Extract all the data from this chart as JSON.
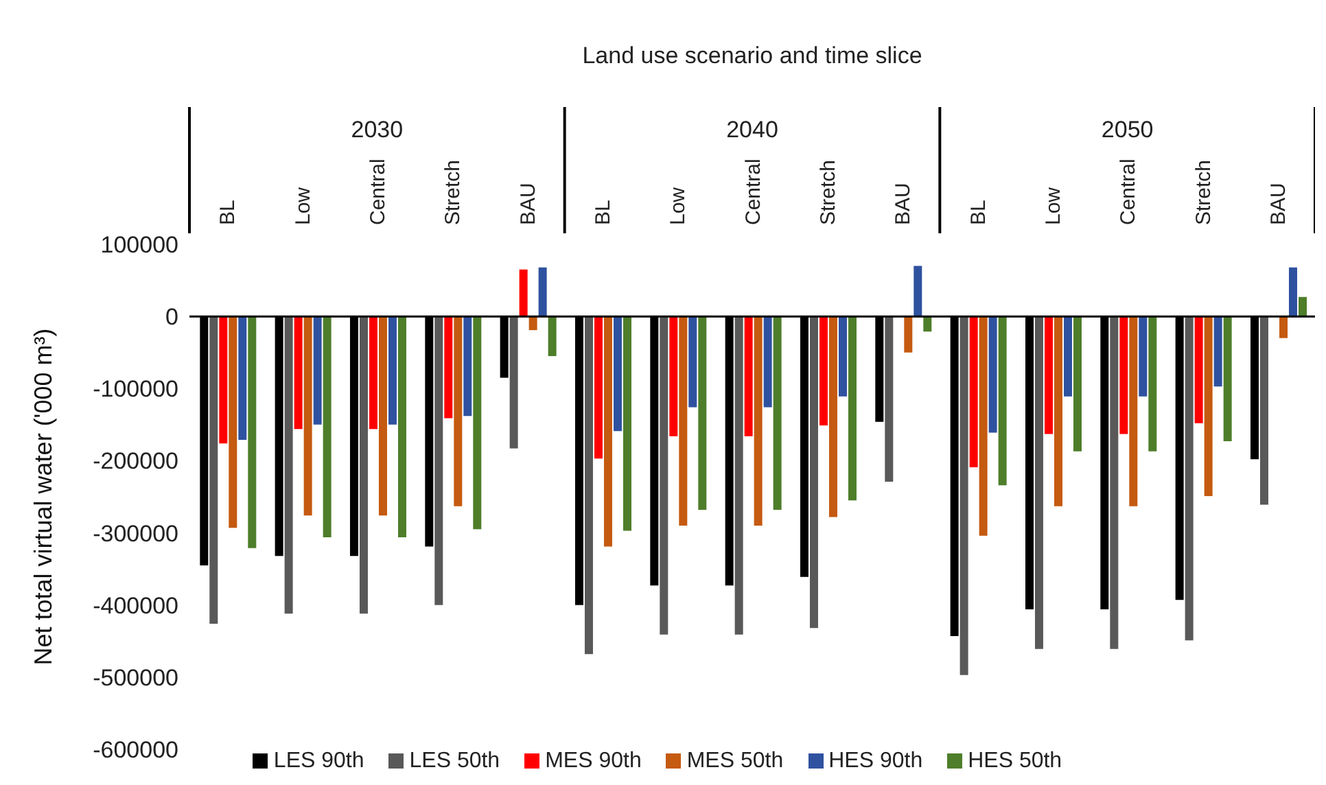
{
  "chart_data": {
    "type": "bar",
    "xlabel": "Land use scenario and time slice",
    "ylabel": "Net total virtual water ('000 m³)",
    "categories": [
      "BL",
      "Low",
      "Central",
      "Stretch",
      "BAU",
      "BL",
      "Low",
      "Central",
      "Stretch",
      "BAU",
      "BL",
      "Low",
      "Central",
      "Stretch",
      "BAU"
    ],
    "annotations": [
      "2030",
      "2040",
      "2050"
    ],
    "series": [
      {
        "name": "LES 90th",
        "color": "#000000",
        "values": [
          -345000,
          -332000,
          -332000,
          -319000,
          -85000,
          -400000,
          -373000,
          -373000,
          -361000,
          -146000,
          -443000,
          -406000,
          -406000,
          -393000,
          -198000
        ]
      },
      {
        "name": "LES 50th",
        "color": "#595959",
        "values": [
          -426000,
          -412000,
          -412000,
          -400000,
          -183000,
          -468000,
          -441000,
          -441000,
          -432000,
          -229000,
          -497000,
          -461000,
          -461000,
          -449000,
          -261000
        ]
      },
      {
        "name": "MES 90th",
        "color": "#ff0000",
        "values": [
          -176000,
          -156000,
          -156000,
          -141000,
          65000,
          -197000,
          -166000,
          -166000,
          -151000,
          null,
          -209000,
          -163000,
          -163000,
          -148000,
          null
        ]
      },
      {
        "name": "MES 50th",
        "color": "#c55a11",
        "values": [
          -293000,
          -276000,
          -276000,
          -263000,
          -19000,
          -319000,
          -290000,
          -290000,
          -278000,
          -50000,
          -304000,
          -263000,
          -263000,
          -249000,
          -30000
        ]
      },
      {
        "name": "HES 90th",
        "color": "#2f52a0",
        "values": [
          -171000,
          -150000,
          -150000,
          -138000,
          68000,
          -159000,
          -126000,
          -126000,
          -111000,
          70000,
          -161000,
          -111000,
          -111000,
          -97000,
          68000
        ]
      },
      {
        "name": "HES 50th",
        "color": "#4e7e2a",
        "values": [
          -321000,
          -306000,
          -306000,
          -295000,
          -55000,
          -297000,
          -268000,
          -268000,
          -255000,
          -21000,
          -234000,
          -187000,
          -187000,
          -173000,
          27000
        ]
      }
    ],
    "ylim": [
      -600000,
      100000
    ],
    "yticks": [
      100000,
      0,
      -100000,
      -200000,
      -300000,
      -400000,
      -500000,
      -600000
    ],
    "legend": "bottom"
  }
}
